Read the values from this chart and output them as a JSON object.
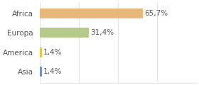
{
  "categories": [
    "Africa",
    "Europa",
    "America",
    "Asia"
  ],
  "values": [
    65.7,
    31.4,
    1.4,
    1.4
  ],
  "labels": [
    "65,7%",
    "31,4%",
    "1,4%",
    "1,4%"
  ],
  "bar_colors": [
    "#e8b87a",
    "#b5c98a",
    "#e8c840",
    "#7090cc"
  ],
  "background_color": "#ffffff",
  "xlim": [
    0,
    100
  ],
  "label_fontsize": 7.5,
  "category_fontsize": 7.5,
  "grid_color": "#dddddd",
  "grid_positions": [
    0,
    25,
    50,
    75,
    100
  ]
}
